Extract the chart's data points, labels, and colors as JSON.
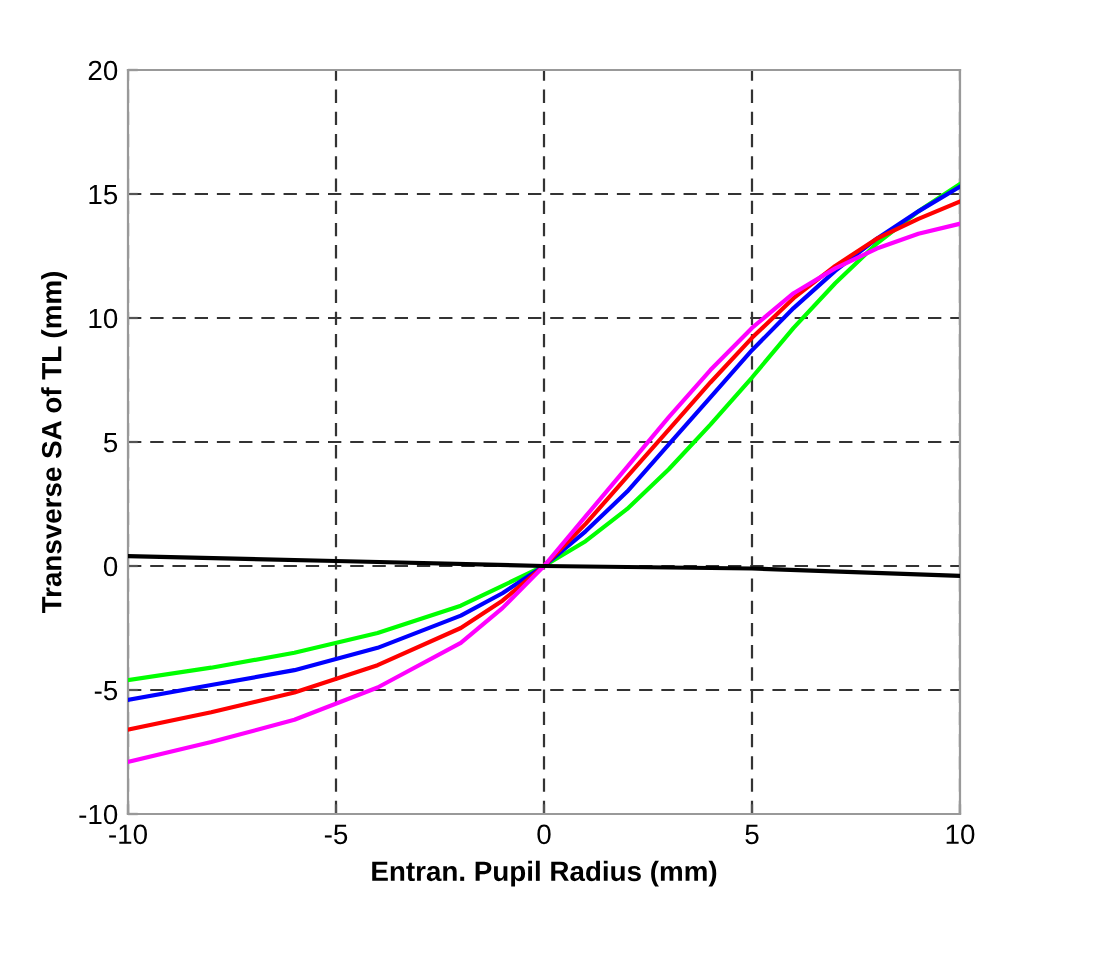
{
  "chart_data": {
    "type": "line",
    "xlabel": "Entran. Pupil Radius (mm)",
    "ylabel": "Transverse SA of TL (mm)",
    "xlim": [
      -10,
      10
    ],
    "ylim": [
      -10,
      20
    ],
    "xticks": [
      -10,
      -5,
      0,
      5,
      10
    ],
    "yticks": [
      -10,
      -5,
      0,
      5,
      10,
      15,
      20
    ],
    "grid": true,
    "line_style": "solid",
    "marker": "none",
    "series": [
      {
        "color": "#00ff00",
        "x": [
          -10,
          -8,
          -6,
          -4,
          -2,
          -1,
          0,
          1,
          2,
          3,
          4,
          5,
          6,
          7,
          8,
          9,
          10
        ],
        "values": [
          -4.6,
          -4.1,
          -3.5,
          -2.7,
          -1.6,
          -0.8,
          0,
          1.0,
          2.3,
          3.9,
          5.7,
          7.6,
          9.6,
          11.4,
          13.0,
          14.3,
          15.4
        ]
      },
      {
        "color": "#0000ff",
        "x": [
          -10,
          -8,
          -6,
          -4,
          -2,
          -1,
          0,
          1,
          2,
          3,
          4,
          5,
          6,
          7,
          8,
          9,
          10
        ],
        "values": [
          -5.4,
          -4.8,
          -4.2,
          -3.3,
          -2.0,
          -1.1,
          0,
          1.4,
          3.0,
          4.9,
          6.8,
          8.7,
          10.4,
          11.9,
          13.2,
          14.3,
          15.3
        ]
      },
      {
        "color": "#ff0000",
        "x": [
          -10,
          -8,
          -6,
          -4,
          -2,
          -1,
          0,
          1,
          2,
          3,
          4,
          5,
          6,
          7,
          8,
          9,
          10
        ],
        "values": [
          -6.6,
          -5.9,
          -5.1,
          -4.0,
          -2.5,
          -1.4,
          0,
          1.7,
          3.6,
          5.5,
          7.4,
          9.2,
          10.8,
          12.1,
          13.2,
          14.0,
          14.7
        ]
      },
      {
        "color": "#ff00ff",
        "x": [
          -10,
          -8,
          -6,
          -4,
          -2,
          -1,
          0,
          1,
          2,
          3,
          4,
          5,
          6,
          7,
          8,
          9,
          10
        ],
        "values": [
          -7.9,
          -7.1,
          -6.2,
          -4.9,
          -3.1,
          -1.7,
          0,
          2.0,
          4.0,
          6.0,
          7.9,
          9.6,
          11.0,
          12.0,
          12.8,
          13.4,
          13.8
        ]
      },
      {
        "color": "#000000",
        "x": [
          -10,
          -5,
          0,
          5,
          10
        ],
        "values": [
          0.4,
          0.2,
          0,
          -0.1,
          -0.4
        ]
      }
    ]
  }
}
